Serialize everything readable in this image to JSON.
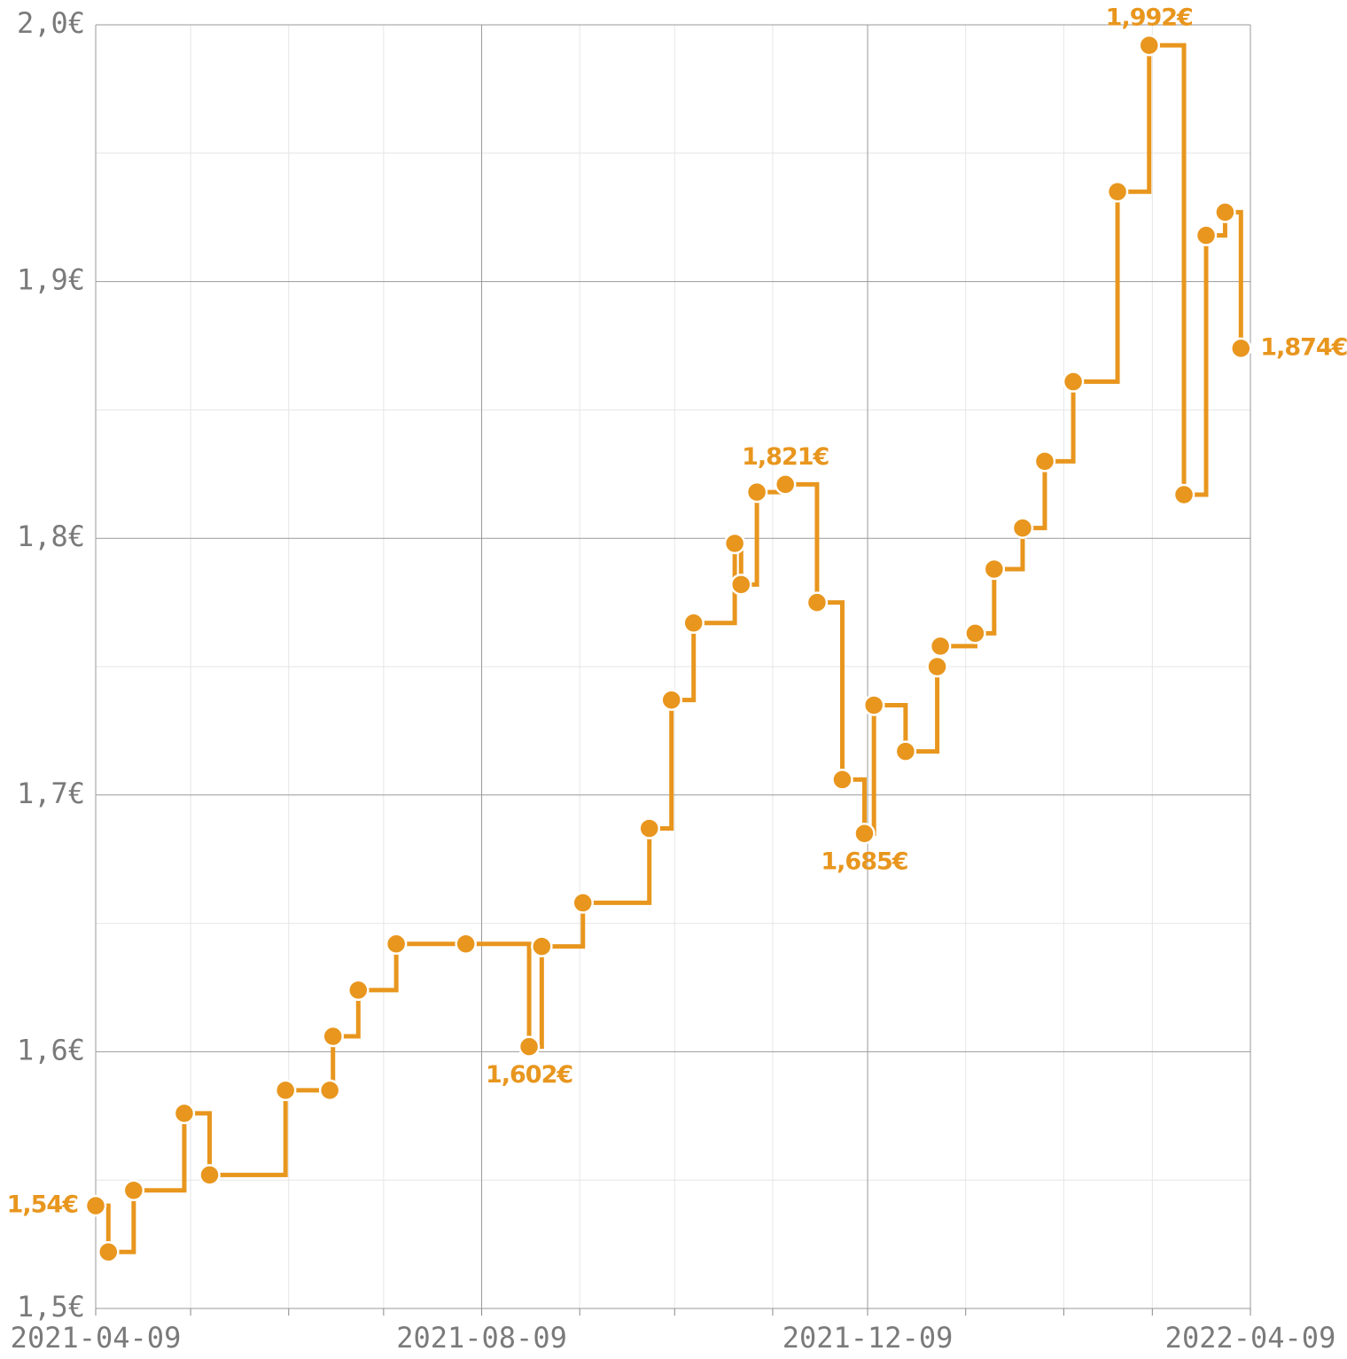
{
  "chart_data": {
    "type": "step",
    "x": [
      "2021-04-09",
      "2021-04-13",
      "2021-04-21",
      "2021-05-07",
      "2021-05-15",
      "2021-06-08",
      "2021-06-22",
      "2021-06-23",
      "2021-07-01",
      "2021-07-13",
      "2021-08-04",
      "2021-08-24",
      "2021-08-28",
      "2021-09-10",
      "2021-10-01",
      "2021-10-08",
      "2021-10-15",
      "2021-10-28",
      "2021-10-30",
      "2021-11-04",
      "2021-11-13",
      "2021-11-23",
      "2021-12-01",
      "2021-12-08",
      "2021-12-11",
      "2021-12-21",
      "2021-12-31",
      "2022-01-01",
      "2022-01-12",
      "2022-01-18",
      "2022-01-27",
      "2022-02-03",
      "2022-02-12",
      "2022-02-26",
      "2022-03-08",
      "2022-03-19",
      "2022-03-26",
      "2022-04-01",
      "2022-04-06"
    ],
    "values": [
      1.54,
      1.522,
      1.546,
      1.576,
      1.552,
      1.585,
      1.585,
      1.606,
      1.624,
      1.642,
      1.642,
      1.602,
      1.641,
      1.658,
      1.687,
      1.737,
      1.767,
      1.798,
      1.782,
      1.818,
      1.821,
      1.775,
      1.706,
      1.685,
      1.735,
      1.717,
      1.75,
      1.758,
      1.763,
      1.788,
      1.804,
      1.83,
      1.861,
      1.935,
      1.992,
      1.817,
      1.918,
      1.927,
      1.874
    ],
    "value_labels": [
      "1,54€",
      null,
      null,
      null,
      null,
      null,
      null,
      null,
      null,
      null,
      null,
      "1,602€",
      null,
      null,
      null,
      null,
      null,
      null,
      null,
      null,
      "1,821€",
      null,
      null,
      "1,685€",
      null,
      null,
      null,
      null,
      null,
      null,
      null,
      null,
      null,
      null,
      "1,992€",
      null,
      null,
      null,
      "1,874€"
    ],
    "color": "#e8961e",
    "xlim": [
      "2021-04-09",
      "2022-04-09"
    ],
    "xticks": [
      "2021-04-09",
      "2021-08-09",
      "2021-12-09",
      "2022-04-09"
    ],
    "xminor": [
      "2021-05-09",
      "2021-06-09",
      "2021-07-09",
      "2021-09-09",
      "2021-10-09",
      "2021-11-09",
      "2022-01-09",
      "2022-02-09",
      "2022-03-09"
    ],
    "ylim": [
      1.5,
      2.0
    ],
    "yticks": [
      {
        "value": 1.5,
        "label": "1,5€"
      },
      {
        "value": 1.6,
        "label": "1,6€"
      },
      {
        "value": 1.7,
        "label": "1,7€"
      },
      {
        "value": 1.8,
        "label": "1,8€"
      },
      {
        "value": 1.9,
        "label": "1,9€"
      },
      {
        "value": 2.0,
        "label": "2,0€"
      }
    ],
    "yminor": [
      1.55,
      1.65,
      1.75,
      1.85,
      1.95
    ],
    "grid": true
  }
}
